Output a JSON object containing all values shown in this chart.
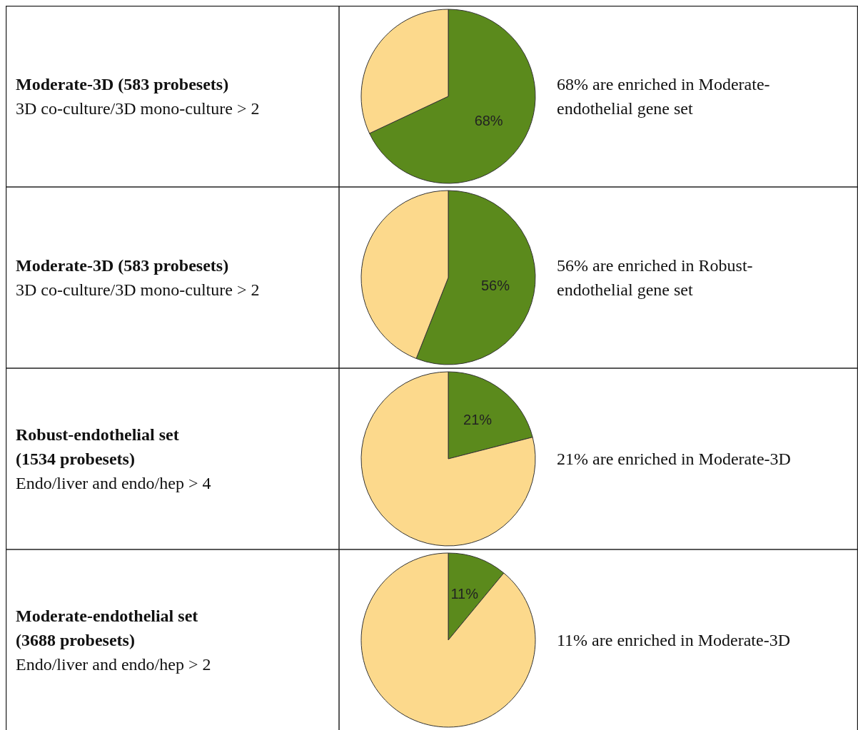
{
  "chart_data": [
    {
      "type": "pie",
      "title": "Moderate-3D (583 probesets)",
      "subtitle": "\n3D co-culture/3D mono-culture > 2",
      "categories": [
        null,
        null
      ],
      "values": [
        68,
        32
      ],
      "colors": [
        "#5b8a1c",
        "#fcd98c"
      ],
      "value_labels": [
        "68%",
        null
      ],
      "annotations": [
        "68% are enriched in Moderate-endothelial gene set"
      ]
    },
    {
      "type": "pie",
      "title": "Moderate-3D (583 probesets)",
      "subtitle": "\n3D co-culture/3D mono-culture > 2",
      "categories": [
        null,
        null
      ],
      "values": [
        56,
        44
      ],
      "colors": [
        "#5b8a1c",
        "#fcd98c"
      ],
      "value_labels": [
        "56%",
        null
      ],
      "annotations": [
        "56% are enriched in Robust-endothelial gene set"
      ]
    },
    {
      "type": "pie",
      "title": "Robust-endothelial set\n(1534 probesets)",
      "subtitle": "\nEndo/liver and endo/hep > 4",
      "categories": [
        null,
        null
      ],
      "values": [
        21,
        79
      ],
      "colors": [
        "#5b8a1c",
        "#fcd98c"
      ],
      "value_labels": [
        "21%",
        null
      ],
      "annotations": [
        "21% are enriched in Moderate-3D"
      ]
    },
    {
      "type": "pie",
      "title": "Moderate-endothelial set\n(3688 probesets)",
      "subtitle": "\nEndo/liver and endo/hep > 2",
      "categories": [
        null,
        null
      ],
      "values": [
        11,
        89
      ],
      "colors": [
        "#5b8a1c",
        "#fcd98c"
      ],
      "value_labels": [
        "11%",
        null
      ],
      "annotations": [
        "11% are enriched in Moderate-3D"
      ]
    }
  ]
}
